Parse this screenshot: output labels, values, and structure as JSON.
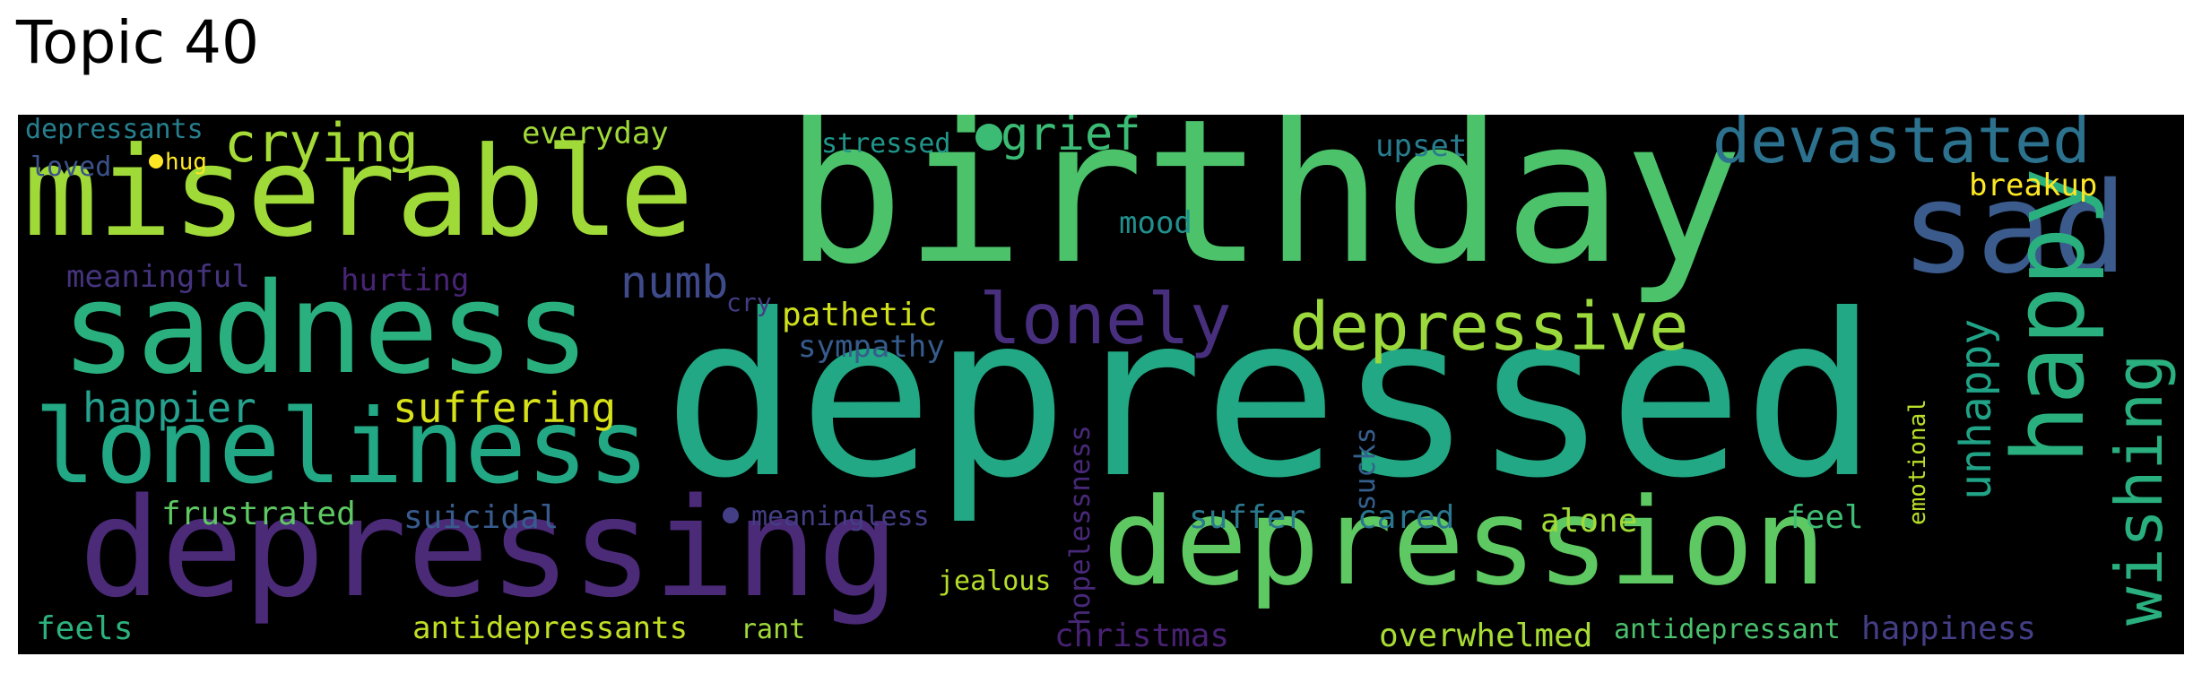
{
  "title": "Topic 40",
  "words": [
    {
      "text": "birthday",
      "color": "#4cc26b"
    },
    {
      "text": "depressed",
      "color": "#22a884"
    },
    {
      "text": "miserable",
      "color": "#a0da39"
    },
    {
      "text": "sadness",
      "color": "#2ab07f"
    },
    {
      "text": "depressing",
      "color": "#4b2a78"
    },
    {
      "text": "depression",
      "color": "#5ec962"
    },
    {
      "text": "loneliness",
      "color": "#22a884"
    },
    {
      "text": "sad",
      "color": "#3b5b8c"
    },
    {
      "text": "happy",
      "color": "#2ab07f"
    },
    {
      "text": "wishing",
      "color": "#2aaf7f"
    },
    {
      "text": "devastated",
      "color": "#2c728e"
    },
    {
      "text": "lonely",
      "color": "#472f7d"
    },
    {
      "text": "depressive",
      "color": "#9bd93c"
    },
    {
      "text": "crying",
      "color": "#a5db36"
    },
    {
      "text": "happier",
      "color": "#25a18e"
    },
    {
      "text": "suffering",
      "color": "#d8e219"
    },
    {
      "text": "grief",
      "color": "#3cbb75"
    },
    {
      "text": "numb",
      "color": "#3e4a89"
    },
    {
      "text": "unhappy",
      "color": "#20a386"
    },
    {
      "text": "everyday",
      "color": "#a0da39"
    },
    {
      "text": "stressed",
      "color": "#1f968b"
    },
    {
      "text": "upset",
      "color": "#287c8e"
    },
    {
      "text": "depressants",
      "color": "#277f8e"
    },
    {
      "text": "loved",
      "color": "#3b528b"
    },
    {
      "text": "hug",
      "color": "#fde725"
    },
    {
      "text": "breakup",
      "color": "#fde725"
    },
    {
      "text": "mood",
      "color": "#21908d"
    },
    {
      "text": "meaningful",
      "color": "#46337e"
    },
    {
      "text": "hurting",
      "color": "#482475"
    },
    {
      "text": "cry",
      "color": "#433d84"
    },
    {
      "text": "pathetic",
      "color": "#d0e11c"
    },
    {
      "text": "sympathy",
      "color": "#365c8d"
    },
    {
      "text": "hopelessness",
      "color": "#482878"
    },
    {
      "text": "sucks",
      "color": "#355f8d"
    },
    {
      "text": "emotional",
      "color": "#b8de29"
    },
    {
      "text": "frustrated",
      "color": "#5ec962"
    },
    {
      "text": "suicidal",
      "color": "#375b8d"
    },
    {
      "text": "meaningless",
      "color": "#433e85"
    },
    {
      "text": "suffer",
      "color": "#2a788e"
    },
    {
      "text": "cared",
      "color": "#2a768e"
    },
    {
      "text": "alone",
      "color": "#a2da37"
    },
    {
      "text": "feel",
      "color": "#3fbc73"
    },
    {
      "text": "jealous",
      "color": "#b5de2b"
    },
    {
      "text": "feels",
      "color": "#2db27d"
    },
    {
      "text": "antidepressants",
      "color": "#c0df25"
    },
    {
      "text": "rant",
      "color": "#9fda3a"
    },
    {
      "text": "christmas",
      "color": "#482173"
    },
    {
      "text": "overwhelmed",
      "color": "#a8db34"
    },
    {
      "text": "antidepressant",
      "color": "#4ac16d"
    },
    {
      "text": "happiness",
      "color": "#433e85"
    }
  ],
  "dots": [
    {
      "color": "#fde725"
    },
    {
      "color": "#3cbb75"
    },
    {
      "color": "#433e85"
    }
  ]
}
